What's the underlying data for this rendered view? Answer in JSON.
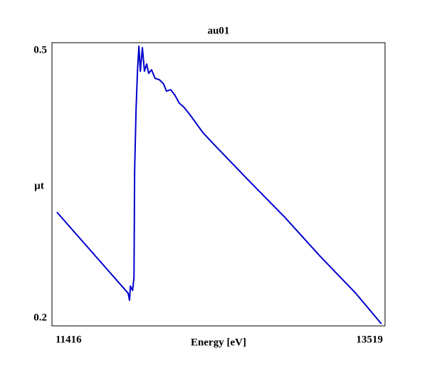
{
  "chart_data": {
    "type": "line",
    "title": "au01",
    "x_label": "Energy [eV]",
    "y_label": "µt",
    "xlim": [
      11416,
      13519
    ],
    "xticks": [
      11416,
      13519
    ],
    "ylim": [
      0.2,
      0.5
    ],
    "yticks": [
      0.2,
      0.5
    ],
    "x": [
      11447,
      11897,
      11906,
      11911,
      11925,
      11934,
      11938,
      11947,
      11956,
      11965,
      11974,
      11987,
      12000,
      12014,
      12027,
      12045,
      12067,
      12094,
      12121,
      12139,
      12166,
      12193,
      12220,
      12247,
      12283,
      12323,
      12368,
      12435,
      12660,
      12885,
      13109,
      13334,
      13496
    ],
    "series": [
      {
        "name": "au01",
        "color": "#0000cc",
        "values": [
          0.3205,
          0.2346,
          0.2271,
          0.2421,
          0.2376,
          0.2512,
          0.3643,
          0.4284,
          0.4698,
          0.4962,
          0.4698,
          0.4947,
          0.4698,
          0.4774,
          0.4676,
          0.4713,
          0.4623,
          0.4608,
          0.4563,
          0.4487,
          0.4502,
          0.4442,
          0.4359,
          0.4321,
          0.4246,
          0.4155,
          0.405,
          0.3929,
          0.3537,
          0.3153,
          0.2738,
          0.2346,
          0.2022
        ]
      }
    ]
  }
}
